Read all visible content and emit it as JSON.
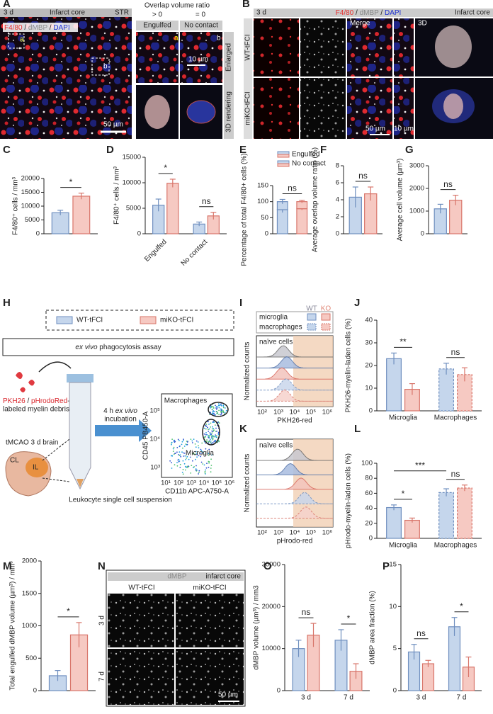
{
  "figure": {
    "A": {
      "label": "A",
      "time": "3 d",
      "region": "Infarct core",
      "side": "STR",
      "stain": [
        "F4/80",
        " / ",
        "dMBP",
        " / ",
        "DAPI"
      ],
      "insets": [
        "a",
        "b"
      ],
      "scale": "50 µm",
      "overlap_title": "Overlap volume ratio",
      "conditions": [
        "> 0",
        "= 0"
      ],
      "columns": [
        "Engulfed",
        "No contact"
      ],
      "rows": [
        "Enlarged",
        "3D rendering"
      ],
      "inset_labels": [
        "a",
        "b"
      ],
      "inset_scale": "10 µm"
    },
    "B": {
      "label": "B",
      "time": "3 d",
      "stain": [
        "F4/80",
        " / ",
        "dMBP",
        " / ",
        "DAPI"
      ],
      "region": "Infarct core",
      "merge": "Merge",
      "view3d": "3D",
      "rows": [
        "WT-tFCI",
        "miKO-tFCI"
      ],
      "scale": "50 µm",
      "inset_scale": "10 µm"
    },
    "H": {
      "label": "H",
      "legend": [
        "WT-tFCI",
        "miKO-tFCI"
      ],
      "assay": [
        "ex vivo",
        " phagocytosis assay"
      ],
      "debris": [
        "PKH26",
        " / ",
        "pHrodoRed",
        "-"
      ],
      "debris2": "labeled myelin debris",
      "incubation": [
        "4 h ",
        "ex vivo"
      ],
      "incubation2": "incubation",
      "brain": "tMCAO 3 d brain",
      "hemispheres": [
        "CL",
        "IL"
      ],
      "suspension": "Leukocyte single cell suspension",
      "gates": [
        "Macrophages",
        "Microglia"
      ],
      "ylabel": "CD45 PB450-A",
      "xlabel": "CD11b APC-A750-A",
      "yticks": [
        "10³",
        "10⁴",
        "10⁵"
      ],
      "xticks": [
        "10¹",
        "10²",
        "10³",
        "10⁴",
        "10⁵",
        "10⁶"
      ]
    },
    "I": {
      "label": "I",
      "legend_rows": [
        "microglia",
        "macrophages"
      ],
      "legend_cols": [
        "WT",
        "KO"
      ],
      "naive": "naïve cells",
      "ylabel": "Normalized counts",
      "xlabel": "PKH26-red",
      "xticks": [
        "10²",
        "10³",
        "10⁴",
        "10⁵",
        "10⁶"
      ]
    },
    "K": {
      "label": "K",
      "naive": "naïve cells",
      "ylabel": "Normalized counts",
      "xlabel": "pHrodo-red",
      "xticks": [
        "10²",
        "10³",
        "10⁴",
        "10⁵",
        "10⁶"
      ]
    },
    "N": {
      "label": "N",
      "stain": "dMBP",
      "region": "infarct core",
      "columns": [
        "WT-tFCI",
        "miKO-tFCI"
      ],
      "rows": [
        "3 d",
        "7 d"
      ],
      "scale": "50 µm"
    }
  },
  "chart_data": [
    {
      "label": "C",
      "type": "bar",
      "ylabel": "F4/80⁺ cells / mm³",
      "categories": [
        null
      ],
      "series": [
        {
          "color": "#c5d6ec",
          "edge": "#6f8fbf",
          "values": [
            7600
          ],
          "errors": [
            900
          ]
        },
        {
          "color": "#f6c9c2",
          "edge": "#d8756a",
          "values": [
            13600
          ],
          "errors": [
            1100
          ]
        }
      ],
      "ylim": [
        0,
        20000
      ],
      "yticks": [
        0,
        5000,
        10000,
        15000,
        20000
      ],
      "significance": [
        {
          "text": "*",
          "bars": [
            0,
            1
          ]
        }
      ]
    },
    {
      "label": "D",
      "type": "bar",
      "ylabel": "F4/80⁺ cells / mm³",
      "categories": [
        "Engulfed",
        "No contact"
      ],
      "rotate_labels": true,
      "series": [
        {
          "color": "#c5d6ec",
          "edge": "#6f8fbf",
          "values": [
            5600,
            1900
          ],
          "errors": [
            1200,
            400
          ]
        },
        {
          "color": "#f6c9c2",
          "edge": "#d8756a",
          "values": [
            9900,
            3500
          ],
          "errors": [
            800,
            700
          ]
        }
      ],
      "ylim": [
        0,
        15000
      ],
      "yticks": [
        0,
        5000,
        10000,
        15000
      ],
      "significance": [
        {
          "text": "*",
          "bars": [
            0,
            1
          ]
        },
        {
          "text": "ns",
          "bars": [
            2,
            3
          ]
        }
      ]
    },
    {
      "label": "E",
      "type": "stacked_bar",
      "ylabel": "Percentage of total F4/80+ cells (%)",
      "categories": [
        null,
        null
      ],
      "column_colors": [
        "#c5d6ec",
        "#f6c9c2"
      ],
      "column_edges": [
        "#6f8fbf",
        "#d8756a"
      ],
      "series": [
        {
          "name": "Engulfed",
          "values": [
            75,
            78
          ],
          "errors": [
            9,
            4
          ]
        },
        {
          "name": "No contact",
          "values": [
            25,
            22
          ],
          "errors": [
            7,
            4
          ]
        }
      ],
      "ylim": [
        0,
        150
      ],
      "yticks": [
        0,
        50,
        100,
        150
      ],
      "significance": [
        {
          "text": "ns",
          "bars": [
            0,
            1
          ]
        }
      ]
    },
    {
      "label": "F",
      "type": "bar",
      "ylabel": "Average overlap volume ratio (%)",
      "categories": [
        null
      ],
      "series": [
        {
          "color": "#c5d6ec",
          "edge": "#6f8fbf",
          "values": [
            4.3
          ],
          "errors": [
            1.2
          ]
        },
        {
          "color": "#f6c9c2",
          "edge": "#d8756a",
          "values": [
            4.7
          ],
          "errors": [
            0.8
          ]
        }
      ],
      "ylim": [
        0,
        8
      ],
      "yticks": [
        0,
        2,
        4,
        6,
        8
      ],
      "significance": [
        {
          "text": "ns",
          "bars": [
            0,
            1
          ]
        }
      ]
    },
    {
      "label": "G",
      "type": "bar",
      "ylabel": "Average cell volume (µm³)",
      "categories": [
        null
      ],
      "series": [
        {
          "color": "#c5d6ec",
          "edge": "#6f8fbf",
          "values": [
            1100
          ],
          "errors": [
            200
          ]
        },
        {
          "color": "#f6c9c2",
          "edge": "#d8756a",
          "values": [
            1480
          ],
          "errors": [
            220
          ]
        }
      ],
      "ylim": [
        0,
        3000
      ],
      "yticks": [
        0,
        1000,
        2000,
        3000
      ],
      "significance": [
        {
          "text": "ns",
          "bars": [
            0,
            1
          ]
        }
      ]
    },
    {
      "label": "J",
      "type": "bar",
      "ylabel": "PKH26-myelin-laden cells (%)",
      "categories": [
        "Microglia",
        "Macrophages"
      ],
      "dashed_categories": [
        1
      ],
      "series": [
        {
          "color": "#c5d6ec",
          "edge": "#6f8fbf",
          "values": [
            23,
            18.5
          ],
          "errors": [
            2.5,
            2.5
          ]
        },
        {
          "color": "#f6c9c2",
          "edge": "#d8756a",
          "values": [
            9.5,
            16
          ],
          "errors": [
            2.5,
            3
          ]
        }
      ],
      "ylim": [
        0,
        40
      ],
      "yticks": [
        0,
        10,
        20,
        30,
        40
      ],
      "significance": [
        {
          "text": "**",
          "bars": [
            0,
            1
          ]
        },
        {
          "text": "ns",
          "bars": [
            2,
            3
          ]
        }
      ]
    },
    {
      "label": "L",
      "type": "bar",
      "ylabel": "pHrodo-myelin-laden cells (%)",
      "categories": [
        "Microglia",
        "Macrophages"
      ],
      "dashed_categories": [
        1
      ],
      "series": [
        {
          "color": "#c5d6ec",
          "edge": "#6f8fbf",
          "values": [
            41,
            61
          ],
          "errors": [
            3.5,
            5
          ]
        },
        {
          "color": "#f6c9c2",
          "edge": "#d8756a",
          "values": [
            24,
            67
          ],
          "errors": [
            3,
            4
          ]
        }
      ],
      "ylim": [
        0,
        100
      ],
      "yticks": [
        0,
        20,
        40,
        60,
        80,
        100
      ],
      "significance": [
        {
          "text": "*",
          "bars": [
            0,
            1
          ]
        },
        {
          "text": "ns",
          "bars": [
            2,
            3
          ]
        },
        {
          "text": "***",
          "bars": [
            0,
            2
          ]
        }
      ]
    },
    {
      "label": "M",
      "type": "bar",
      "ylabel": "Total engulfed dMBP volume (µm³) / mm³",
      "categories": [
        null
      ],
      "series": [
        {
          "color": "#c5d6ec",
          "edge": "#6f8fbf",
          "values": [
            230
          ],
          "errors": [
            80
          ]
        },
        {
          "color": "#f6c9c2",
          "edge": "#d8756a",
          "values": [
            860
          ],
          "errors": [
            190
          ]
        }
      ],
      "ylim": [
        0,
        2000
      ],
      "yticks": [
        0,
        500,
        1000,
        1500,
        2000
      ],
      "significance": [
        {
          "text": "*",
          "bars": [
            0,
            1
          ]
        }
      ]
    },
    {
      "label": "O",
      "type": "bar",
      "ylabel": "dMBP volume (µm³) / mm3",
      "categories": [
        "3 d",
        "7 d"
      ],
      "series": [
        {
          "color": "#c5d6ec",
          "edge": "#6f8fbf",
          "values": [
            10000,
            12000
          ],
          "errors": [
            2000,
            2500
          ]
        },
        {
          "color": "#f6c9c2",
          "edge": "#d8756a",
          "values": [
            13200,
            4600
          ],
          "errors": [
            2800,
            1800
          ]
        }
      ],
      "ylim": [
        0,
        30000
      ],
      "yticks": [
        0,
        10000,
        20000,
        30000
      ],
      "significance": [
        {
          "text": "ns",
          "bars": [
            0,
            1
          ]
        },
        {
          "text": "*",
          "bars": [
            2,
            3
          ]
        }
      ]
    },
    {
      "label": "P",
      "type": "bar",
      "ylabel": "dMBP area fraction (%)",
      "categories": [
        "3 d",
        "7 d"
      ],
      "series": [
        {
          "color": "#c5d6ec",
          "edge": "#6f8fbf",
          "values": [
            4.6,
            7.6
          ],
          "errors": [
            0.9,
            1.1
          ]
        },
        {
          "color": "#f6c9c2",
          "edge": "#d8756a",
          "values": [
            3.2,
            2.8
          ],
          "errors": [
            0.4,
            1.2
          ]
        }
      ],
      "ylim": [
        0,
        15
      ],
      "yticks": [
        0,
        5,
        10,
        15
      ],
      "significance": [
        {
          "text": "ns",
          "bars": [
            0,
            1
          ]
        },
        {
          "text": "*",
          "bars": [
            2,
            3
          ]
        }
      ]
    }
  ]
}
